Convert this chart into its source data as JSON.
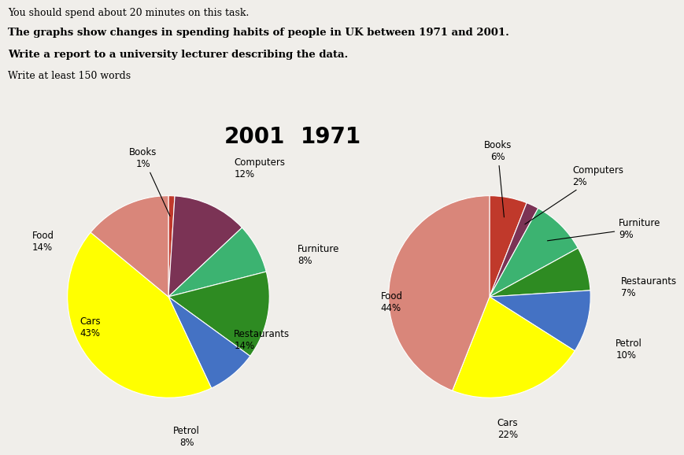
{
  "title_line1": "You should spend about 20 minutes on this task.",
  "title_line2": "The graphs show changes in spending habits of people in UK between 1971 and 2001.",
  "title_line3": "Write a report to a university lecturer describing the data.",
  "title_line4": "Write at least 150 words",
  "chart2001_title": "2001",
  "chart1971_title": "1971",
  "chart2001": {
    "labels": [
      "Books",
      "Computers",
      "Furniture",
      "Restaurants",
      "Petrol",
      "Cars",
      "Food"
    ],
    "values": [
      1,
      12,
      8,
      14,
      8,
      43,
      14
    ],
    "colors": [
      "#c0392b",
      "#7b3355",
      "#3cb371",
      "#2e8b22",
      "#4472c4",
      "#ffff00",
      "#d9867a"
    ]
  },
  "chart1971": {
    "labels": [
      "Books",
      "Computers",
      "Furniture",
      "Restaurants",
      "Petrol",
      "Cars",
      "Food"
    ],
    "values": [
      6,
      2,
      9,
      7,
      10,
      22,
      44
    ],
    "colors": [
      "#c0392b",
      "#7b3355",
      "#3cb371",
      "#2e8b22",
      "#4472c4",
      "#ffff00",
      "#d9867a"
    ]
  },
  "background_color": "#f0eeea"
}
